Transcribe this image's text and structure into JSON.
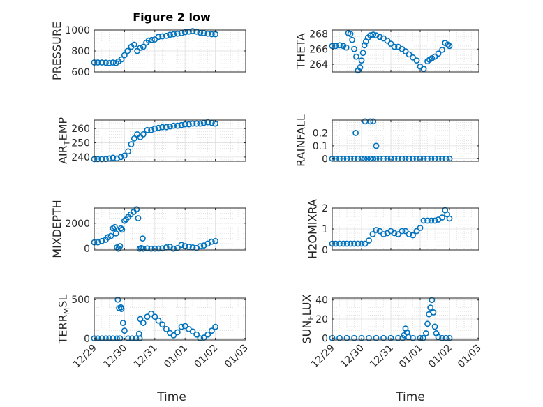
{
  "figure": {
    "title": "Figure 2 low",
    "marker_color": "#0072bd"
  },
  "x_axis": {
    "tick_labels": [
      "12/29",
      "12/30",
      "12/31",
      "01/01",
      "01/02",
      "01/03"
    ],
    "xlabel": "Time",
    "range_days": [
      0,
      5
    ]
  },
  "chart_data": [
    {
      "type": "scatter",
      "id": "pressure",
      "ylabel": "PRESSURE",
      "ylim": [
        600,
        1000
      ],
      "yticks": [
        600,
        800,
        1000
      ],
      "ytick_labels": [
        "600",
        "800",
        "1000"
      ],
      "x_days": [
        0.0,
        0.12,
        0.25,
        0.38,
        0.5,
        0.62,
        0.72,
        0.8,
        0.9,
        1.0,
        1.1,
        1.22,
        1.32,
        1.42,
        1.52,
        1.62,
        1.72,
        1.8,
        1.9,
        2.0,
        2.12,
        2.25,
        2.38,
        2.5,
        2.62,
        2.75,
        2.88,
        3.0,
        3.12,
        3.25,
        3.38,
        3.5,
        3.62,
        3.75,
        3.88,
        4.0
      ],
      "y": [
        690,
        690,
        690,
        688,
        685,
        690,
        685,
        700,
        720,
        760,
        800,
        840,
        860,
        800,
        830,
        840,
        880,
        900,
        905,
        910,
        935,
        940,
        945,
        955,
        960,
        965,
        970,
        980,
        985,
        990,
        985,
        975,
        970,
        965,
        960,
        960
      ]
    },
    {
      "type": "scatter",
      "id": "theta",
      "ylabel": "THETA",
      "ylim": [
        263,
        268.5
      ],
      "yticks": [
        264,
        266,
        268
      ],
      "ytick_labels": [
        "264",
        "266",
        "268"
      ],
      "x_days": [
        0.0,
        0.12,
        0.25,
        0.38,
        0.48,
        0.55,
        0.62,
        0.68,
        0.75,
        0.82,
        0.88,
        0.95,
        1.0,
        1.05,
        1.1,
        1.15,
        1.22,
        1.3,
        1.4,
        1.5,
        1.62,
        1.75,
        1.88,
        2.0,
        2.12,
        2.25,
        2.38,
        2.5,
        2.62,
        2.75,
        2.88,
        3.0,
        3.12,
        3.25,
        3.32,
        3.4,
        3.5,
        3.62,
        3.75,
        3.85,
        3.95,
        4.0
      ],
      "y": [
        266.4,
        266.4,
        266.5,
        266.4,
        266.2,
        268.1,
        268.0,
        267.2,
        266.0,
        265.0,
        263.2,
        263.6,
        264.5,
        265.5,
        266.5,
        267.0,
        267.5,
        267.8,
        267.9,
        267.8,
        267.6,
        267.4,
        267.1,
        266.7,
        266.3,
        266.3,
        266.0,
        265.7,
        265.3,
        264.9,
        264.5,
        263.7,
        263.4,
        264.4,
        264.6,
        264.8,
        265.0,
        265.4,
        265.9,
        266.8,
        266.6,
        266.4
      ]
    },
    {
      "type": "scatter",
      "id": "air_temp",
      "ylabel": "AIR_TEMP",
      "ylim": [
        237,
        266
      ],
      "yticks": [
        240,
        250,
        260
      ],
      "ytick_labels": [
        "240",
        "250",
        "260"
      ],
      "x_days": [
        0.0,
        0.12,
        0.25,
        0.38,
        0.5,
        0.62,
        0.75,
        0.88,
        1.0,
        1.12,
        1.22,
        1.32,
        1.42,
        1.52,
        1.62,
        1.75,
        1.88,
        2.0,
        2.12,
        2.25,
        2.38,
        2.5,
        2.62,
        2.75,
        2.88,
        3.0,
        3.12,
        3.25,
        3.38,
        3.5,
        3.62,
        3.75,
        3.88,
        4.0
      ],
      "y": [
        238.5,
        238.5,
        238.5,
        238.6,
        239,
        239.5,
        239,
        240,
        241,
        244,
        249,
        253,
        256,
        254,
        256,
        259,
        259,
        260,
        260.5,
        261,
        261,
        261.5,
        262,
        262,
        262.5,
        263,
        263,
        263.5,
        263.5,
        263.5,
        264,
        264.5,
        264,
        263.5
      ]
    },
    {
      "type": "scatter",
      "id": "rainfall",
      "ylabel": "RAINFALL",
      "ylim": [
        -0.02,
        0.3
      ],
      "yticks": [
        0,
        0.1,
        0.2
      ],
      "ytick_labels": [
        "0",
        "0.1",
        "0.2"
      ],
      "x_days": [
        0.0,
        0.12,
        0.25,
        0.38,
        0.5,
        0.62,
        0.75,
        0.88,
        1.0,
        1.1,
        1.2,
        1.3,
        1.4,
        1.5,
        1.62,
        1.75,
        1.88,
        2.0,
        2.12,
        2.25,
        2.38,
        2.5,
        2.62,
        2.75,
        2.88,
        3.0,
        3.12,
        3.25,
        3.38,
        3.5,
        3.62,
        3.75,
        3.88,
        4.0,
        0.8,
        1.12,
        1.3,
        1.4,
        1.5
      ],
      "y": [
        0,
        0,
        0,
        0,
        0,
        0,
        0,
        0,
        0,
        0,
        0,
        0,
        0,
        0,
        0,
        0,
        0,
        0,
        0,
        0,
        0,
        0,
        0,
        0,
        0,
        0,
        0,
        0,
        0,
        0,
        0,
        0,
        0,
        0,
        0.2,
        0.29,
        0.29,
        0.29,
        0.1
      ]
    },
    {
      "type": "scatter",
      "id": "mixdepth",
      "ylabel": "MIXDEPTH",
      "ylim": [
        -100,
        3200
      ],
      "yticks": [
        0,
        2000
      ],
      "ytick_labels": [
        "0",
        "2000"
      ],
      "x_days": [
        0.0,
        0.12,
        0.25,
        0.38,
        0.45,
        0.55,
        0.62,
        0.68,
        0.75,
        0.8,
        0.85,
        0.92,
        1.0,
        1.05,
        1.12,
        1.2,
        1.3,
        1.4,
        1.5,
        1.55,
        1.62,
        1.75,
        1.88,
        2.0,
        2.12,
        2.25,
        2.38,
        2.5,
        2.62,
        2.75,
        2.88,
        3.0,
        3.12,
        3.25,
        3.38,
        3.5,
        3.62,
        3.75,
        3.88,
        4.0,
        0.72,
        0.88,
        1.45,
        1.6
      ],
      "y": [
        500,
        500,
        600,
        700,
        900,
        1000,
        1600,
        1700,
        100,
        0,
        200,
        1500,
        2200,
        2300,
        2500,
        2700,
        2900,
        3100,
        0,
        50,
        0,
        20,
        0,
        0,
        10,
        20,
        100,
        150,
        0,
        50,
        300,
        200,
        150,
        100,
        50,
        200,
        250,
        400,
        550,
        600,
        1200,
        1600,
        2400,
        800
      ]
    },
    {
      "type": "scatter",
      "id": "h2omixra",
      "ylabel": "H2OMIXRA",
      "ylim": [
        0,
        2
      ],
      "yticks": [
        0,
        1,
        2
      ],
      "ytick_labels": [
        "0",
        "1",
        "2"
      ],
      "x_days": [
        0.0,
        0.12,
        0.25,
        0.38,
        0.5,
        0.62,
        0.75,
        0.88,
        1.0,
        1.12,
        1.25,
        1.38,
        1.5,
        1.62,
        1.75,
        1.88,
        2.0,
        2.12,
        2.25,
        2.38,
        2.5,
        2.62,
        2.75,
        2.88,
        3.0,
        3.12,
        3.25,
        3.38,
        3.5,
        3.62,
        3.75,
        3.85,
        3.92,
        4.0
      ],
      "y": [
        0.3,
        0.3,
        0.3,
        0.3,
        0.3,
        0.3,
        0.3,
        0.3,
        0.3,
        0.3,
        0.45,
        0.75,
        0.95,
        0.9,
        0.75,
        0.8,
        0.9,
        0.8,
        0.75,
        0.9,
        0.9,
        0.75,
        0.7,
        0.9,
        1.05,
        1.4,
        1.4,
        1.4,
        1.4,
        1.45,
        1.55,
        1.9,
        1.7,
        1.5
      ]
    },
    {
      "type": "scatter",
      "id": "terr_msl",
      "ylabel": "TERR_MSL",
      "ylim": [
        -20,
        520
      ],
      "yticks": [
        0,
        500
      ],
      "ytick_labels": [
        "0",
        "500"
      ],
      "x_days": [
        0.0,
        0.12,
        0.25,
        0.38,
        0.5,
        0.62,
        0.75,
        0.85,
        0.9,
        0.95,
        1.0,
        1.12,
        1.25,
        1.38,
        1.5,
        1.62,
        1.75,
        1.88,
        2.0,
        2.12,
        2.25,
        2.38,
        2.5,
        2.62,
        2.75,
        2.88,
        3.0,
        3.12,
        3.25,
        3.38,
        3.5,
        3.62,
        3.75,
        3.88,
        4.0,
        0.78,
        0.82,
        0.88,
        1.48,
        1.52
      ],
      "y": [
        0,
        0,
        0,
        0,
        0,
        0,
        0,
        0,
        380,
        200,
        100,
        0,
        0,
        0,
        0,
        200,
        280,
        320,
        280,
        230,
        180,
        120,
        70,
        40,
        80,
        150,
        160,
        120,
        90,
        50,
        0,
        10,
        50,
        100,
        150,
        500,
        390,
        400,
        60,
        250
      ]
    },
    {
      "type": "scatter",
      "id": "sun_flux",
      "ylabel": "SUN_FLUX",
      "ylim": [
        -2,
        42
      ],
      "yticks": [
        0,
        20,
        40
      ],
      "ytick_labels": [
        "0",
        "20",
        "40"
      ],
      "x_days": [
        0.0,
        0.25,
        0.5,
        0.75,
        1.0,
        1.25,
        1.5,
        1.75,
        2.0,
        2.25,
        2.4,
        2.45,
        2.5,
        2.55,
        2.6,
        2.75,
        3.0,
        3.1,
        3.2,
        3.25,
        3.3,
        3.35,
        3.4,
        3.45,
        3.5,
        3.55,
        3.62,
        3.75,
        3.88,
        4.0
      ],
      "y": [
        0,
        0,
        0,
        0,
        0,
        0,
        0,
        0,
        0,
        0,
        0,
        3,
        10,
        6,
        1,
        0,
        0,
        0,
        5,
        15,
        25,
        32,
        40,
        27,
        12,
        5,
        1,
        0,
        0,
        0
      ]
    }
  ]
}
